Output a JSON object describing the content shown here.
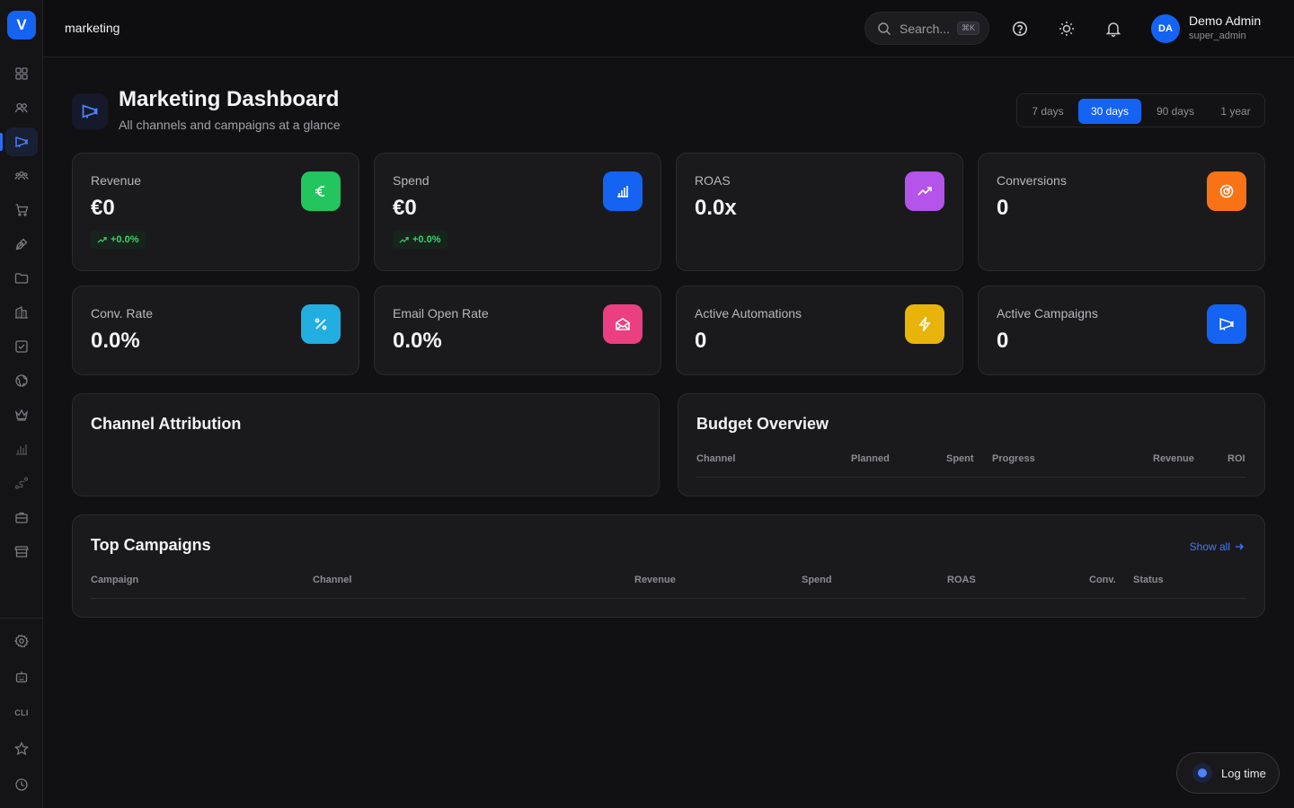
{
  "sidebar": {
    "logo": "V",
    "items": [
      {
        "icon": "grid-icon"
      },
      {
        "icon": "users-icon"
      },
      {
        "icon": "megaphone-icon",
        "active": true
      },
      {
        "icon": "team-icon"
      },
      {
        "icon": "cart-icon"
      },
      {
        "icon": "pen-icon"
      },
      {
        "icon": "folder-icon"
      },
      {
        "icon": "building-icon"
      },
      {
        "icon": "checkbox-icon"
      },
      {
        "icon": "globe-icon"
      },
      {
        "icon": "crown-icon"
      },
      {
        "icon": "bar-chart-icon"
      },
      {
        "icon": "route-icon"
      },
      {
        "icon": "briefcase-icon"
      },
      {
        "icon": "store-icon"
      }
    ],
    "bottom": [
      {
        "icon": "settings-icon"
      },
      {
        "icon": "robot-icon"
      },
      {
        "label": "CLI"
      },
      {
        "icon": "star-icon"
      },
      {
        "icon": "clock-icon"
      }
    ]
  },
  "topbar": {
    "breadcrumb": "marketing",
    "search_placeholder": "Search...",
    "search_shortcut": "⌘K",
    "user": {
      "initials": "DA",
      "name": "Demo Admin",
      "role": "super_admin"
    }
  },
  "header": {
    "title": "Marketing Dashboard",
    "subtitle": "All channels and campaigns at a glance",
    "ranges": [
      "7 days",
      "30 days",
      "90 days",
      "1 year"
    ],
    "active_range": "30 days"
  },
  "kpis": [
    {
      "label": "Revenue",
      "value": "€0",
      "trend": "+0.0%",
      "icon": "euro-icon",
      "color": "#22c55e"
    },
    {
      "label": "Spend",
      "value": "€0",
      "trend": "+0.0%",
      "icon": "bar-chart-icon",
      "color": "#1463f3"
    },
    {
      "label": "ROAS",
      "value": "0.0x",
      "icon": "trending-up-icon",
      "color": "#b454ea"
    },
    {
      "label": "Conversions",
      "value": "0",
      "icon": "target-icon",
      "color": "#f97316"
    },
    {
      "label": "Conv. Rate",
      "value": "0.0%",
      "icon": "percent-icon",
      "color": "#22aee0"
    },
    {
      "label": "Email Open Rate",
      "value": "0.0%",
      "icon": "mail-open-icon",
      "color": "#ec3f82"
    },
    {
      "label": "Active Automations",
      "value": "0",
      "icon": "lightning-icon",
      "color": "#e9b409"
    },
    {
      "label": "Active Campaigns",
      "value": "0",
      "icon": "megaphone-icon",
      "color": "#1463f3"
    }
  ],
  "channel_attribution": {
    "title": "Channel Attribution"
  },
  "budget_overview": {
    "title": "Budget Overview",
    "columns": [
      "Channel",
      "Planned",
      "Spent",
      "Progress",
      "Revenue",
      "ROI"
    ]
  },
  "top_campaigns": {
    "title": "Top Campaigns",
    "show_all": "Show all",
    "columns": [
      "Campaign",
      "Channel",
      "Revenue",
      "Spend",
      "ROAS",
      "Conv.",
      "Status"
    ]
  },
  "log_time": "Log time"
}
